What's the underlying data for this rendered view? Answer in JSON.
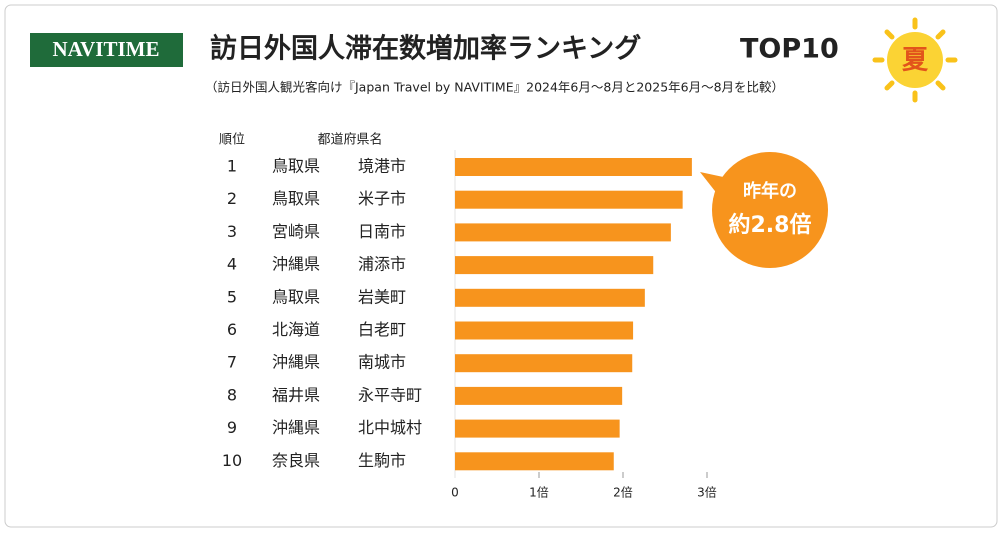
{
  "chart_data": {
    "type": "bar",
    "orientation": "horizontal",
    "logo": "NAVITIME",
    "title": "訪日外国人滞在数増加率ランキング",
    "title_suffix": "TOP10",
    "badge": "夏",
    "subtitle": "（訪日外国人観光客向け『Japan Travel by NAVITIME』2024年6月～8月と2025年6月～8月を比較）",
    "rank_header": "順位",
    "name_header": "都道府県名",
    "ranks": [
      1,
      2,
      3,
      4,
      5,
      6,
      7,
      8,
      9,
      10
    ],
    "prefectures": [
      "鳥取県",
      "鳥取県",
      "宮崎県",
      "沖縄県",
      "鳥取県",
      "北海道",
      "沖縄県",
      "福井県",
      "沖縄県",
      "奈良県"
    ],
    "cities": [
      "境港市",
      "米子市",
      "日南市",
      "浦添市",
      "岩美町",
      "白老町",
      "南城市",
      "永平寺町",
      "北中城村",
      "生駒市"
    ],
    "values": [
      2.82,
      2.71,
      2.57,
      2.36,
      2.26,
      2.12,
      2.11,
      1.99,
      1.96,
      1.89
    ],
    "color": "#f7941d",
    "xlim": [
      0,
      3
    ],
    "xticks": [
      0,
      {
        "value": 1,
        "label": "1倍"
      },
      {
        "value": 2,
        "label": "2倍"
      },
      {
        "value": 3,
        "label": "3倍"
      }
    ],
    "annotation": [
      "昨年の",
      "約2.8倍"
    ]
  }
}
